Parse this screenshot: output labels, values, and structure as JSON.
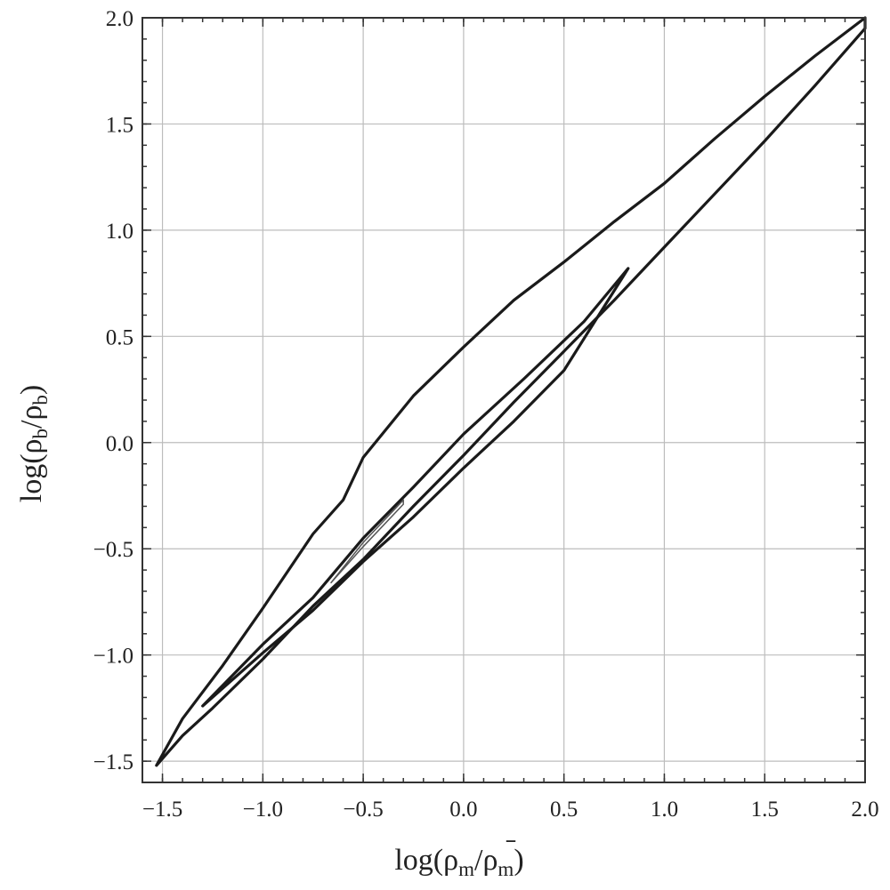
{
  "chart_data": {
    "type": "line",
    "title": "",
    "xlabel": "log(ρm/ρm)",
    "ylabel": "log(ρb/ρb)",
    "xlabel_parts": {
      "prefix": "log(ρ",
      "sub1": "m",
      "mid": "/ρ",
      "bar": "̄",
      "sub2": "m",
      "suffix": ")"
    },
    "ylabel_parts": {
      "prefix": "log(ρ",
      "sub1": "b",
      "mid": "/ρ",
      "bar": "̄",
      "sub2": "b",
      "suffix": ")"
    },
    "xlim": [
      -1.6,
      2.0
    ],
    "ylim": [
      -1.6,
      2.0
    ],
    "grid": true,
    "x_ticks": [
      -1.5,
      -1.0,
      -0.5,
      0.0,
      0.5,
      1.0,
      1.5,
      2.0
    ],
    "y_ticks": [
      -1.5,
      -1.0,
      -0.5,
      0.0,
      0.5,
      1.0,
      1.5,
      2.0
    ],
    "x_tick_labels": [
      "−1.5",
      "−1.0",
      "−0.5",
      "0.0",
      "0.5",
      "1.0",
      "1.5",
      "2.0"
    ],
    "y_tick_labels": [
      "−1.5",
      "−1.0",
      "−0.5",
      "0.0",
      "0.5",
      "1.0",
      "1.5",
      "2.0"
    ],
    "series": [
      {
        "style": "outer",
        "x": [
          -1.53,
          -1.4,
          -1.25,
          -1.0,
          -0.75,
          -0.5,
          -0.25,
          0.0,
          0.25,
          0.5,
          0.75,
          1.0,
          1.25,
          1.5,
          1.75,
          2.0,
          2.0,
          1.75,
          1.5,
          1.25,
          1.0,
          0.75,
          0.5,
          0.25,
          0.0,
          -0.25,
          -0.5,
          -0.6,
          -0.75,
          -1.0,
          -1.2,
          -1.4,
          -1.53
        ],
        "y": [
          -1.52,
          -1.38,
          -1.25,
          -1.02,
          -0.77,
          -0.55,
          -0.3,
          -0.06,
          0.19,
          0.43,
          0.67,
          0.92,
          1.17,
          1.42,
          1.68,
          1.95,
          2.0,
          1.82,
          1.63,
          1.43,
          1.22,
          1.04,
          0.85,
          0.67,
          0.45,
          0.22,
          -0.07,
          -0.27,
          -0.43,
          -0.78,
          -1.05,
          -1.3,
          -1.52
        ]
      },
      {
        "style": "middle",
        "x": [
          -1.3,
          -1.0,
          -0.75,
          -0.5,
          -0.25,
          0.0,
          0.25,
          0.5,
          0.8,
          0.82,
          0.6,
          0.3,
          0.0,
          -0.25,
          -0.5,
          -0.75,
          -1.0,
          -1.3
        ],
        "y": [
          -1.24,
          -0.99,
          -0.79,
          -0.56,
          -0.35,
          -0.12,
          0.1,
          0.34,
          0.79,
          0.82,
          0.57,
          0.3,
          0.04,
          -0.21,
          -0.45,
          -0.73,
          -0.95,
          -1.24
        ]
      },
      {
        "style": "inner",
        "x": [
          -0.66,
          -0.5,
          -0.3,
          -0.3,
          -0.5,
          -0.66
        ],
        "y": [
          -0.66,
          -0.49,
          -0.29,
          -0.27,
          -0.47,
          -0.66
        ]
      }
    ]
  }
}
